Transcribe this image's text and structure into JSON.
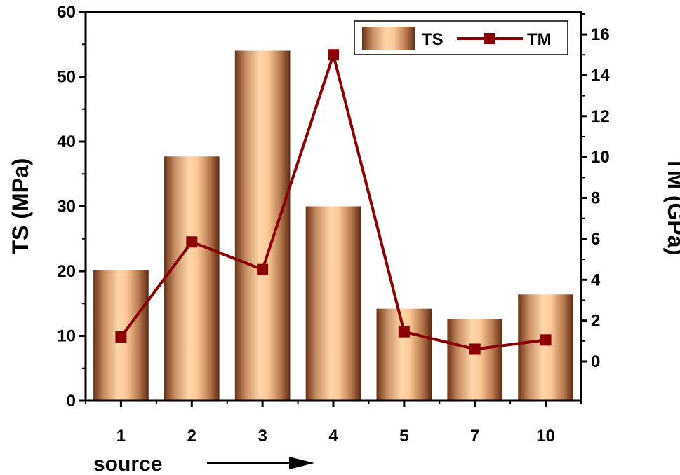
{
  "chart_data": {
    "type": "bar",
    "categories": [
      "1",
      "2",
      "3",
      "4",
      "5",
      "7",
      "10"
    ],
    "series": [
      {
        "name": "TS",
        "type": "bar",
        "axis": "left",
        "values": [
          20.2,
          37.7,
          54.0,
          30.0,
          14.2,
          12.6,
          16.4
        ]
      },
      {
        "name": "TM",
        "type": "line",
        "axis": "right",
        "marker": "square",
        "values": [
          1.2,
          5.85,
          4.5,
          15.0,
          1.45,
          0.6,
          1.05
        ]
      }
    ],
    "xlabel": "source",
    "ylabel_left": "TS (MPa)",
    "ylabel_right": "TM (GPa)",
    "ylim_left": [
      0,
      60
    ],
    "ylim_right": [
      -1.92,
      17.1
    ],
    "yticks_left": [
      0,
      10,
      20,
      30,
      40,
      50,
      60
    ],
    "yticks_right": [
      0,
      2,
      4,
      6,
      8,
      10,
      12,
      14,
      16
    ],
    "legend_position": "top-right",
    "grid": false,
    "colors": {
      "bar_dark": "#7a4022",
      "bar_light": "#ffd3a8",
      "line": "#8b0000"
    }
  }
}
